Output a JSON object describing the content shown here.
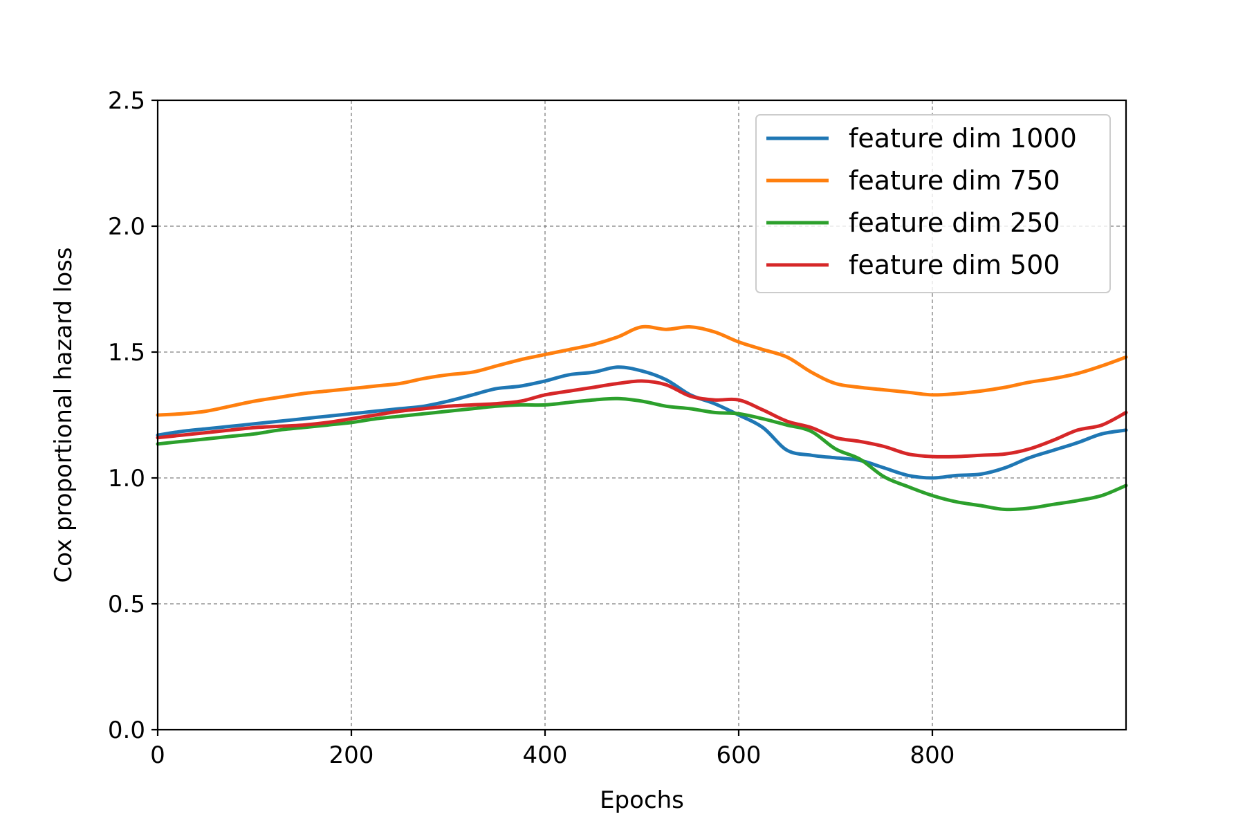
{
  "chart_data": {
    "type": "line",
    "title": "",
    "xlabel": "Epochs",
    "ylabel": "Cox proportional hazard loss",
    "xlim": [
      0,
      1000
    ],
    "ylim": [
      0.0,
      2.5
    ],
    "xticks": [
      0,
      200,
      400,
      600,
      800
    ],
    "xtick_labels": [
      "0",
      "200",
      "400",
      "600",
      "800"
    ],
    "yticks": [
      0.0,
      0.5,
      1.0,
      1.5,
      2.0,
      2.5
    ],
    "ytick_labels": [
      "0.0",
      "0.5",
      "1.0",
      "1.5",
      "2.0",
      "2.5"
    ],
    "grid": true,
    "legend_position": "top-right",
    "x": [
      0,
      25,
      50,
      75,
      100,
      125,
      150,
      175,
      200,
      225,
      250,
      275,
      300,
      325,
      350,
      375,
      400,
      425,
      450,
      475,
      500,
      525,
      550,
      575,
      600,
      625,
      650,
      675,
      700,
      725,
      750,
      775,
      800,
      825,
      850,
      875,
      900,
      925,
      950,
      975,
      1000
    ],
    "series": [
      {
        "name": "feature dim 1000",
        "color": "#1f77b4",
        "values": [
          1.17,
          1.185,
          1.195,
          1.205,
          1.215,
          1.225,
          1.235,
          1.245,
          1.255,
          1.265,
          1.275,
          1.285,
          1.305,
          1.33,
          1.355,
          1.365,
          1.385,
          1.41,
          1.42,
          1.44,
          1.425,
          1.39,
          1.33,
          1.295,
          1.25,
          1.2,
          1.11,
          1.09,
          1.08,
          1.07,
          1.04,
          1.01,
          1.0,
          1.01,
          1.015,
          1.04,
          1.08,
          1.11,
          1.14,
          1.175,
          1.19
        ]
      },
      {
        "name": "feature dim 750",
        "color": "#ff7f0e",
        "values": [
          1.25,
          1.255,
          1.265,
          1.285,
          1.305,
          1.32,
          1.335,
          1.345,
          1.355,
          1.365,
          1.375,
          1.395,
          1.41,
          1.42,
          1.445,
          1.47,
          1.49,
          1.51,
          1.53,
          1.56,
          1.6,
          1.59,
          1.6,
          1.58,
          1.54,
          1.51,
          1.48,
          1.42,
          1.375,
          1.36,
          1.35,
          1.34,
          1.33,
          1.335,
          1.345,
          1.36,
          1.38,
          1.395,
          1.415,
          1.445,
          1.48
        ]
      },
      {
        "name": "feature dim 250",
        "color": "#2ca02c",
        "values": [
          1.135,
          1.145,
          1.155,
          1.165,
          1.175,
          1.19,
          1.2,
          1.21,
          1.22,
          1.235,
          1.245,
          1.255,
          1.265,
          1.275,
          1.285,
          1.29,
          1.29,
          1.3,
          1.31,
          1.315,
          1.305,
          1.285,
          1.275,
          1.26,
          1.255,
          1.235,
          1.21,
          1.185,
          1.115,
          1.075,
          1.005,
          0.965,
          0.93,
          0.905,
          0.89,
          0.875,
          0.88,
          0.895,
          0.91,
          0.93,
          0.97
        ]
      },
      {
        "name": "feature dim 500",
        "color": "#d62728",
        "values": [
          1.16,
          1.17,
          1.18,
          1.19,
          1.2,
          1.205,
          1.21,
          1.22,
          1.235,
          1.25,
          1.265,
          1.275,
          1.285,
          1.29,
          1.295,
          1.305,
          1.33,
          1.345,
          1.36,
          1.375,
          1.385,
          1.37,
          1.325,
          1.31,
          1.31,
          1.27,
          1.225,
          1.2,
          1.16,
          1.145,
          1.125,
          1.095,
          1.085,
          1.085,
          1.09,
          1.095,
          1.115,
          1.15,
          1.19,
          1.21,
          1.26
        ]
      }
    ]
  }
}
